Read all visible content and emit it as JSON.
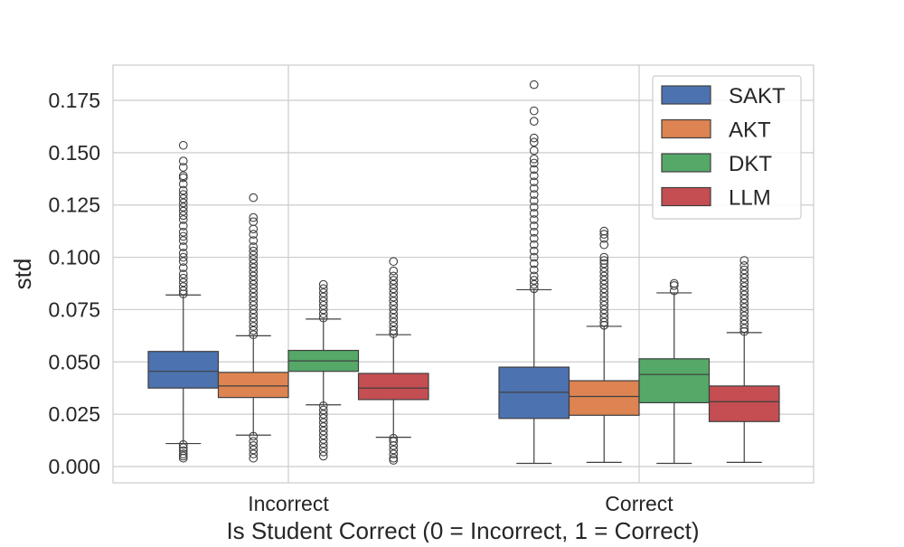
{
  "chart_data": {
    "type": "box",
    "title": "",
    "xlabel": "Is Student Correct (0 = Incorrect, 1 = Correct)",
    "ylabel": "std",
    "ylim": [
      -0.008,
      0.192
    ],
    "yticks": [
      0.0,
      0.025,
      0.05,
      0.075,
      0.1,
      0.125,
      0.15,
      0.175
    ],
    "ytick_labels": [
      "0.000",
      "0.025",
      "0.050",
      "0.075",
      "0.100",
      "0.125",
      "0.150",
      "0.175"
    ],
    "categories": [
      "Incorrect",
      "Correct"
    ],
    "grid": true,
    "legend_position": "top-right",
    "series": [
      {
        "name": "SAKT",
        "color": "#4c72b0",
        "boxes": [
          {
            "whislo": 0.011,
            "q1": 0.0375,
            "med": 0.0455,
            "q3": 0.055,
            "whishi": 0.082,
            "fliers_high": [
              0.0825,
              0.084,
              0.086,
              0.088,
              0.09,
              0.092,
              0.095,
              0.098,
              0.1,
              0.102,
              0.105,
              0.108,
              0.11,
              0.112,
              0.115,
              0.118,
              0.12,
              0.122,
              0.124,
              0.126,
              0.128,
              0.13,
              0.132,
              0.135,
              0.138,
              0.139,
              0.143,
              0.146,
              0.1535
            ],
            "fliers_low": [
              0.0105,
              0.009,
              0.0075,
              0.006,
              0.005,
              0.004
            ]
          },
          {
            "whislo": 0.0015,
            "q1": 0.023,
            "med": 0.0355,
            "q3": 0.0475,
            "whishi": 0.0845,
            "fliers_high": [
              0.085,
              0.087,
              0.089,
              0.091,
              0.094,
              0.097,
              0.1,
              0.103,
              0.106,
              0.109,
              0.112,
              0.115,
              0.118,
              0.121,
              0.124,
              0.127,
              0.13,
              0.133,
              0.136,
              0.139,
              0.142,
              0.145,
              0.147,
              0.151,
              0.155,
              0.157,
              0.165,
              0.17,
              0.1825
            ],
            "fliers_low": []
          }
        ]
      },
      {
        "name": "AKT",
        "color": "#dd8452",
        "boxes": [
          {
            "whislo": 0.015,
            "q1": 0.033,
            "med": 0.0385,
            "q3": 0.045,
            "whishi": 0.0625,
            "fliers_high": [
              0.063,
              0.065,
              0.067,
              0.069,
              0.071,
              0.073,
              0.075,
              0.077,
              0.079,
              0.081,
              0.083,
              0.085,
              0.087,
              0.089,
              0.091,
              0.093,
              0.095,
              0.097,
              0.099,
              0.101,
              0.103,
              0.105,
              0.108,
              0.111,
              0.1135,
              0.117,
              0.119,
              0.1285
            ],
            "fliers_low": [
              0.0145,
              0.012,
              0.01,
              0.008,
              0.006,
              0.004
            ]
          },
          {
            "whislo": 0.002,
            "q1": 0.0245,
            "med": 0.0335,
            "q3": 0.041,
            "whishi": 0.067,
            "fliers_high": [
              0.0675,
              0.069,
              0.071,
              0.073,
              0.075,
              0.077,
              0.079,
              0.081,
              0.083,
              0.085,
              0.087,
              0.089,
              0.091,
              0.093,
              0.095,
              0.097,
              0.0985,
              0.1,
              0.106,
              0.109,
              0.111,
              0.1125
            ],
            "fliers_low": []
          }
        ]
      },
      {
        "name": "DKT",
        "color": "#55a868",
        "boxes": [
          {
            "whislo": 0.0295,
            "q1": 0.0455,
            "med": 0.0505,
            "q3": 0.0555,
            "whishi": 0.0705,
            "fliers_high": [
              0.071,
              0.073,
              0.075,
              0.077,
              0.079,
              0.081,
              0.083,
              0.085,
              0.087
            ],
            "fliers_low": [
              0.029,
              0.027,
              0.025,
              0.023,
              0.021,
              0.019,
              0.017,
              0.015,
              0.013,
              0.011,
              0.009,
              0.007,
              0.005
            ]
          },
          {
            "whislo": 0.0015,
            "q1": 0.0305,
            "med": 0.044,
            "q3": 0.0515,
            "whishi": 0.083,
            "fliers_high": [
              0.084,
              0.0865,
              0.0875
            ],
            "fliers_low": []
          }
        ]
      },
      {
        "name": "LLM",
        "color": "#c44e52",
        "boxes": [
          {
            "whislo": 0.014,
            "q1": 0.032,
            "med": 0.0375,
            "q3": 0.0445,
            "whishi": 0.063,
            "fliers_high": [
              0.0635,
              0.065,
              0.067,
              0.069,
              0.071,
              0.073,
              0.075,
              0.077,
              0.079,
              0.081,
              0.083,
              0.085,
              0.087,
              0.089,
              0.091,
              0.0935,
              0.098
            ],
            "fliers_low": [
              0.0135,
              0.012,
              0.01,
              0.008,
              0.006,
              0.004,
              0.003
            ]
          },
          {
            "whislo": 0.002,
            "q1": 0.0215,
            "med": 0.031,
            "q3": 0.0385,
            "whishi": 0.064,
            "fliers_high": [
              0.0645,
              0.066,
              0.068,
              0.07,
              0.072,
              0.074,
              0.076,
              0.078,
              0.08,
              0.082,
              0.084,
              0.086,
              0.088,
              0.09,
              0.092,
              0.094,
              0.096,
              0.0985
            ],
            "fliers_low": []
          }
        ]
      }
    ]
  }
}
